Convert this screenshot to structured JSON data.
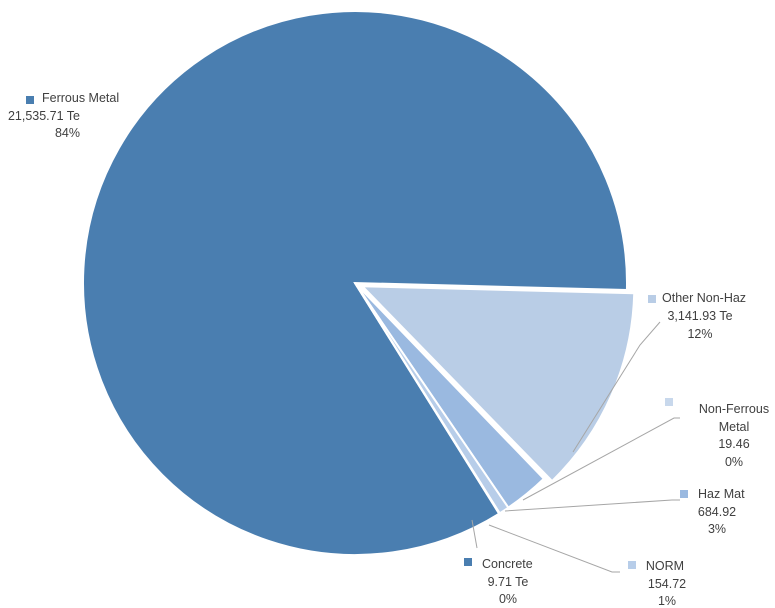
{
  "chart_data": {
    "type": "pie",
    "title": "",
    "slices": [
      {
        "name": "Ferrous Metal",
        "value": 21535.71,
        "value_label": "21,535.71 Te",
        "percent_label": "84%",
        "color": "#4a7eb0"
      },
      {
        "name": "Other Non-Haz",
        "value": 3141.93,
        "value_label": "3,141.93 Te",
        "percent_label": "12%",
        "color": "#b9cde6"
      },
      {
        "name": "Non-Ferrous Metal",
        "value": 19.46,
        "value_label": "19.46",
        "percent_label": "0%",
        "color": "#c8d8ec"
      },
      {
        "name": "Haz Mat",
        "value": 684.92,
        "value_label": "684.92",
        "percent_label": "3%",
        "color": "#9ab9e0"
      },
      {
        "name": "NORM",
        "value": 154.72,
        "value_label": "154.72",
        "percent_label": "1%",
        "color": "#b7cde9"
      },
      {
        "name": "Concrete",
        "value": 9.71,
        "value_label": "9.71 Te",
        "percent_label": "0%",
        "color": "#4a7eb0"
      }
    ],
    "legend": "none",
    "exploded_slice": "Other Non-Haz"
  }
}
